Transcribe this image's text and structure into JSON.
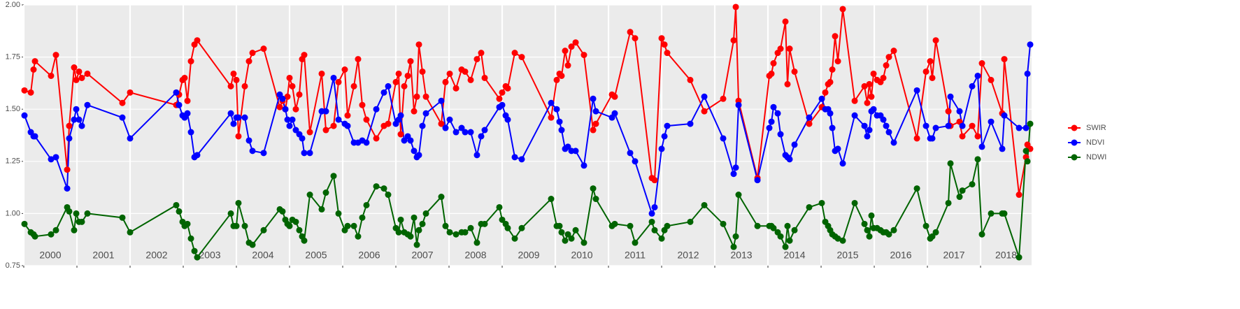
{
  "chart_data": {
    "type": "line",
    "x": [
      2000.013,
      2000.132,
      2000.184,
      2000.211,
      2000.513,
      2000.605,
      2000.816,
      2000.855,
      2000.947,
      2000.987,
      2001.039,
      2001.092,
      2001.197,
      2001.855,
      2002.0,
      2002.868,
      2002.921,
      2002.987,
      2003.026,
      2003.079,
      2003.145,
      2003.211,
      2003.263,
      2003.895,
      2003.947,
      2004.0,
      2004.039,
      2004.158,
      2004.237,
      2004.303,
      2004.513,
      2004.816,
      2004.868,
      2004.921,
      2004.961,
      2005.0,
      2005.053,
      2005.118,
      2005.184,
      2005.237,
      2005.276,
      2005.382,
      2005.605,
      2005.684,
      2005.829,
      2005.921,
      2006.039,
      2006.092,
      2006.211,
      2006.289,
      2006.368,
      2006.447,
      2006.632,
      2006.776,
      2006.855,
      2007.0,
      2007.053,
      2007.092,
      2007.158,
      2007.224,
      2007.276,
      2007.342,
      2007.395,
      2007.434,
      2007.5,
      2007.566,
      2007.855,
      2007.934,
      2008.013,
      2008.132,
      2008.237,
      2008.303,
      2008.408,
      2008.526,
      2008.605,
      2008.671,
      2008.947,
      2009.0,
      2009.066,
      2009.105,
      2009.237,
      2009.368,
      2009.921,
      2010.026,
      2010.079,
      2010.118,
      2010.184,
      2010.237,
      2010.303,
      2010.382,
      2010.539,
      2010.711,
      2010.763,
      2011.066,
      2011.118,
      2011.408,
      2011.5,
      2011.816,
      2011.868,
      2012.0,
      2012.053,
      2012.105,
      2012.539,
      2012.803,
      2013.158,
      2013.355,
      2013.395,
      2013.447,
      2013.803,
      2014.026,
      2014.066,
      2014.105,
      2014.184,
      2014.237,
      2014.329,
      2014.368,
      2014.408,
      2014.5,
      2014.776,
      2015.013,
      2015.079,
      2015.132,
      2015.171,
      2015.211,
      2015.263,
      2015.316,
      2015.408,
      2015.632,
      2015.816,
      2015.868,
      2015.908,
      2015.947,
      2015.987,
      2016.053,
      2016.118,
      2016.171,
      2016.224,
      2016.276,
      2016.368,
      2016.803,
      2016.974,
      2017.053,
      2017.092,
      2017.158,
      2017.395,
      2017.434,
      2017.605,
      2017.658,
      2017.842,
      2017.947,
      2018.026,
      2018.197,
      2018.408,
      2018.447,
      2018.724,
      2018.855,
      2018.882,
      2018.934
    ],
    "series": [
      {
        "name": "SWIR",
        "color": "#ff0000",
        "values": [
          1.59,
          1.58,
          1.69,
          1.73,
          1.66,
          1.76,
          1.21,
          1.42,
          1.7,
          1.64,
          1.68,
          1.65,
          1.67,
          1.53,
          1.58,
          1.52,
          1.57,
          1.64,
          1.65,
          1.54,
          1.73,
          1.81,
          1.83,
          1.61,
          1.67,
          1.64,
          1.37,
          1.61,
          1.73,
          1.77,
          1.79,
          1.51,
          1.54,
          1.5,
          1.56,
          1.65,
          1.61,
          1.5,
          1.57,
          1.74,
          1.76,
          1.39,
          1.67,
          1.4,
          1.42,
          1.63,
          1.69,
          1.47,
          1.61,
          1.74,
          1.52,
          1.45,
          1.36,
          1.42,
          1.43,
          1.63,
          1.67,
          1.38,
          1.61,
          1.66,
          1.73,
          1.49,
          1.56,
          1.81,
          1.68,
          1.56,
          1.43,
          1.63,
          1.67,
          1.6,
          1.69,
          1.68,
          1.64,
          1.74,
          1.77,
          1.65,
          1.55,
          1.58,
          1.61,
          1.6,
          1.77,
          1.75,
          1.46,
          1.64,
          1.67,
          1.66,
          1.78,
          1.71,
          1.8,
          1.82,
          1.76,
          1.4,
          1.43,
          1.57,
          1.56,
          1.87,
          1.84,
          1.17,
          1.16,
          1.84,
          1.81,
          1.77,
          1.64,
          1.49,
          1.55,
          1.83,
          1.99,
          1.54,
          1.17,
          1.66,
          1.67,
          1.72,
          1.77,
          1.79,
          1.92,
          1.62,
          1.79,
          1.68,
          1.43,
          1.51,
          1.58,
          1.62,
          1.63,
          1.69,
          1.85,
          1.73,
          1.98,
          1.54,
          1.61,
          1.53,
          1.62,
          1.56,
          1.67,
          1.64,
          1.63,
          1.65,
          1.71,
          1.75,
          1.78,
          1.36,
          1.68,
          1.73,
          1.65,
          1.83,
          1.49,
          1.42,
          1.44,
          1.37,
          1.42,
          1.37,
          1.72,
          1.64,
          1.48,
          1.74,
          1.09,
          1.27,
          1.33,
          1.31
        ]
      },
      {
        "name": "NDVI",
        "color": "#0000ff",
        "values": [
          1.47,
          1.39,
          1.37,
          1.37,
          1.26,
          1.27,
          1.12,
          1.36,
          1.45,
          1.5,
          1.45,
          1.42,
          1.52,
          1.46,
          1.36,
          1.58,
          1.52,
          1.47,
          1.46,
          1.48,
          1.39,
          1.27,
          1.28,
          1.48,
          1.43,
          1.46,
          1.46,
          1.46,
          1.35,
          1.3,
          1.29,
          1.57,
          1.55,
          1.5,
          1.45,
          1.42,
          1.45,
          1.4,
          1.38,
          1.36,
          1.29,
          1.29,
          1.49,
          1.49,
          1.65,
          1.45,
          1.43,
          1.42,
          1.34,
          1.34,
          1.35,
          1.34,
          1.5,
          1.58,
          1.61,
          1.43,
          1.45,
          1.47,
          1.35,
          1.37,
          1.35,
          1.3,
          1.27,
          1.28,
          1.42,
          1.48,
          1.54,
          1.41,
          1.45,
          1.39,
          1.41,
          1.39,
          1.39,
          1.28,
          1.37,
          1.4,
          1.51,
          1.52,
          1.47,
          1.45,
          1.27,
          1.26,
          1.53,
          1.5,
          1.44,
          1.4,
          1.31,
          1.32,
          1.3,
          1.3,
          1.23,
          1.55,
          1.49,
          1.46,
          1.48,
          1.29,
          1.25,
          1.0,
          1.03,
          1.31,
          1.37,
          1.42,
          1.43,
          1.56,
          1.36,
          1.19,
          1.22,
          1.52,
          1.16,
          1.41,
          1.44,
          1.51,
          1.48,
          1.38,
          1.28,
          1.27,
          1.26,
          1.33,
          1.46,
          1.55,
          1.5,
          1.5,
          1.48,
          1.41,
          1.3,
          1.31,
          1.24,
          1.47,
          1.42,
          1.37,
          1.4,
          1.49,
          1.5,
          1.47,
          1.47,
          1.45,
          1.42,
          1.39,
          1.34,
          1.59,
          1.42,
          1.36,
          1.36,
          1.41,
          1.42,
          1.56,
          1.49,
          1.42,
          1.61,
          1.66,
          1.32,
          1.44,
          1.31,
          1.47,
          1.41,
          1.41,
          1.67,
          1.81
        ]
      },
      {
        "name": "NDWI",
        "color": "#006400",
        "values": [
          0.95,
          0.91,
          0.9,
          0.89,
          0.9,
          0.92,
          1.03,
          1.01,
          0.92,
          1.0,
          0.96,
          0.96,
          1.0,
          0.98,
          0.91,
          1.04,
          1.01,
          0.96,
          0.94,
          0.95,
          0.88,
          0.82,
          0.79,
          1.0,
          0.94,
          0.94,
          1.05,
          0.94,
          0.86,
          0.85,
          0.92,
          1.02,
          1.01,
          0.97,
          0.95,
          0.94,
          0.97,
          0.96,
          0.92,
          0.89,
          0.87,
          1.09,
          1.02,
          1.1,
          1.18,
          1.0,
          0.92,
          0.94,
          0.94,
          0.89,
          0.98,
          1.04,
          1.13,
          1.12,
          1.09,
          0.93,
          0.91,
          0.97,
          0.91,
          0.9,
          0.89,
          0.98,
          0.85,
          0.92,
          0.95,
          1.0,
          1.08,
          0.94,
          0.91,
          0.9,
          0.91,
          0.91,
          0.93,
          0.86,
          0.95,
          0.95,
          1.03,
          0.97,
          0.95,
          0.93,
          0.88,
          0.93,
          1.07,
          0.94,
          0.94,
          0.91,
          0.87,
          0.9,
          0.88,
          0.92,
          0.86,
          1.12,
          1.07,
          0.94,
          0.95,
          0.94,
          0.86,
          0.96,
          0.92,
          0.88,
          0.92,
          0.94,
          0.96,
          1.04,
          0.95,
          0.84,
          0.89,
          1.09,
          0.94,
          0.94,
          0.94,
          0.93,
          0.91,
          0.89,
          0.84,
          0.94,
          0.87,
          0.92,
          1.03,
          1.05,
          0.96,
          0.94,
          0.92,
          0.9,
          0.89,
          0.88,
          0.87,
          1.05,
          0.95,
          0.92,
          0.89,
          0.99,
          0.93,
          0.93,
          0.92,
          0.91,
          0.91,
          0.9,
          0.92,
          1.12,
          0.94,
          0.88,
          0.89,
          0.91,
          1.05,
          1.24,
          1.08,
          1.11,
          1.14,
          1.26,
          0.9,
          1.0,
          1.0,
          1.0,
          0.79,
          1.3,
          1.25,
          1.43
        ]
      }
    ],
    "xlim": [
      2000,
      2018.96
    ],
    "xticks": [
      2000,
      2001,
      2002,
      2003,
      2004,
      2005,
      2006,
      2007,
      2008,
      2009,
      2010,
      2011,
      2012,
      2013,
      2014,
      2015,
      2016,
      2017,
      2018
    ],
    "ylim": [
      0.75,
      2.0
    ],
    "yticks": [
      0.75,
      {
        "value": 1.0,
        "label": "1.00"
      },
      1.25,
      {
        "value": 1.5,
        "label": "1.50"
      },
      1.75,
      {
        "value": 2.0,
        "label": "2.00"
      }
    ],
    "grid": true
  }
}
